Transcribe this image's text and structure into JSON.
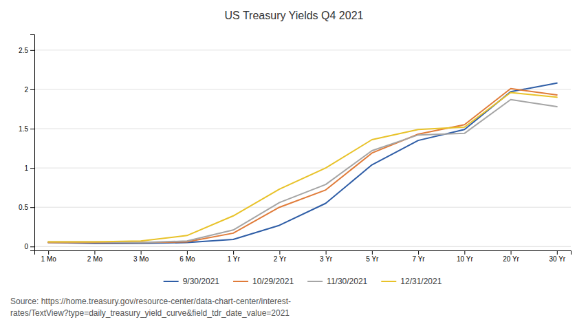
{
  "chart_data": {
    "type": "line",
    "title": "US Treasury Yields Q4 2021",
    "categories": [
      "1 Mo",
      "2 Mo",
      "3 Mo",
      "6 Mo",
      "1 Yr",
      "2 Yr",
      "3 Yr",
      "5 Yr",
      "7 Yr",
      "10 Yr",
      "20 Yr",
      "30 Yr"
    ],
    "series": [
      {
        "name": "9/30/2021",
        "color": "#2E5DA6",
        "values": [
          0.05,
          0.04,
          0.04,
          0.05,
          0.09,
          0.27,
          0.55,
          1.04,
          1.35,
          1.49,
          1.97,
          2.08
        ]
      },
      {
        "name": "10/29/2021",
        "color": "#E07B39",
        "values": [
          0.05,
          0.05,
          0.05,
          0.06,
          0.17,
          0.5,
          0.72,
          1.19,
          1.43,
          1.55,
          2.01,
          1.93
        ]
      },
      {
        "name": "11/30/2021",
        "color": "#A5A5A5",
        "values": [
          0.06,
          0.06,
          0.05,
          0.07,
          0.21,
          0.56,
          0.79,
          1.22,
          1.42,
          1.44,
          1.87,
          1.78
        ]
      },
      {
        "name": "12/31/2021",
        "color": "#E8C229",
        "values": [
          0.06,
          0.06,
          0.07,
          0.14,
          0.39,
          0.73,
          1.0,
          1.36,
          1.49,
          1.52,
          1.96,
          1.9
        ]
      }
    ],
    "ylim": [
      -0.05,
      2.7
    ],
    "yticks": [
      0,
      0.5,
      1,
      1.5,
      2,
      2.5
    ],
    "grid": true,
    "legend": "bottom",
    "source": "Source:  https://home.treasury.gov/resource-center/data-chart-center/interest-\nrates/TextView?type=daily_treasury_yield_curve&field_tdr_date_value=2021"
  }
}
